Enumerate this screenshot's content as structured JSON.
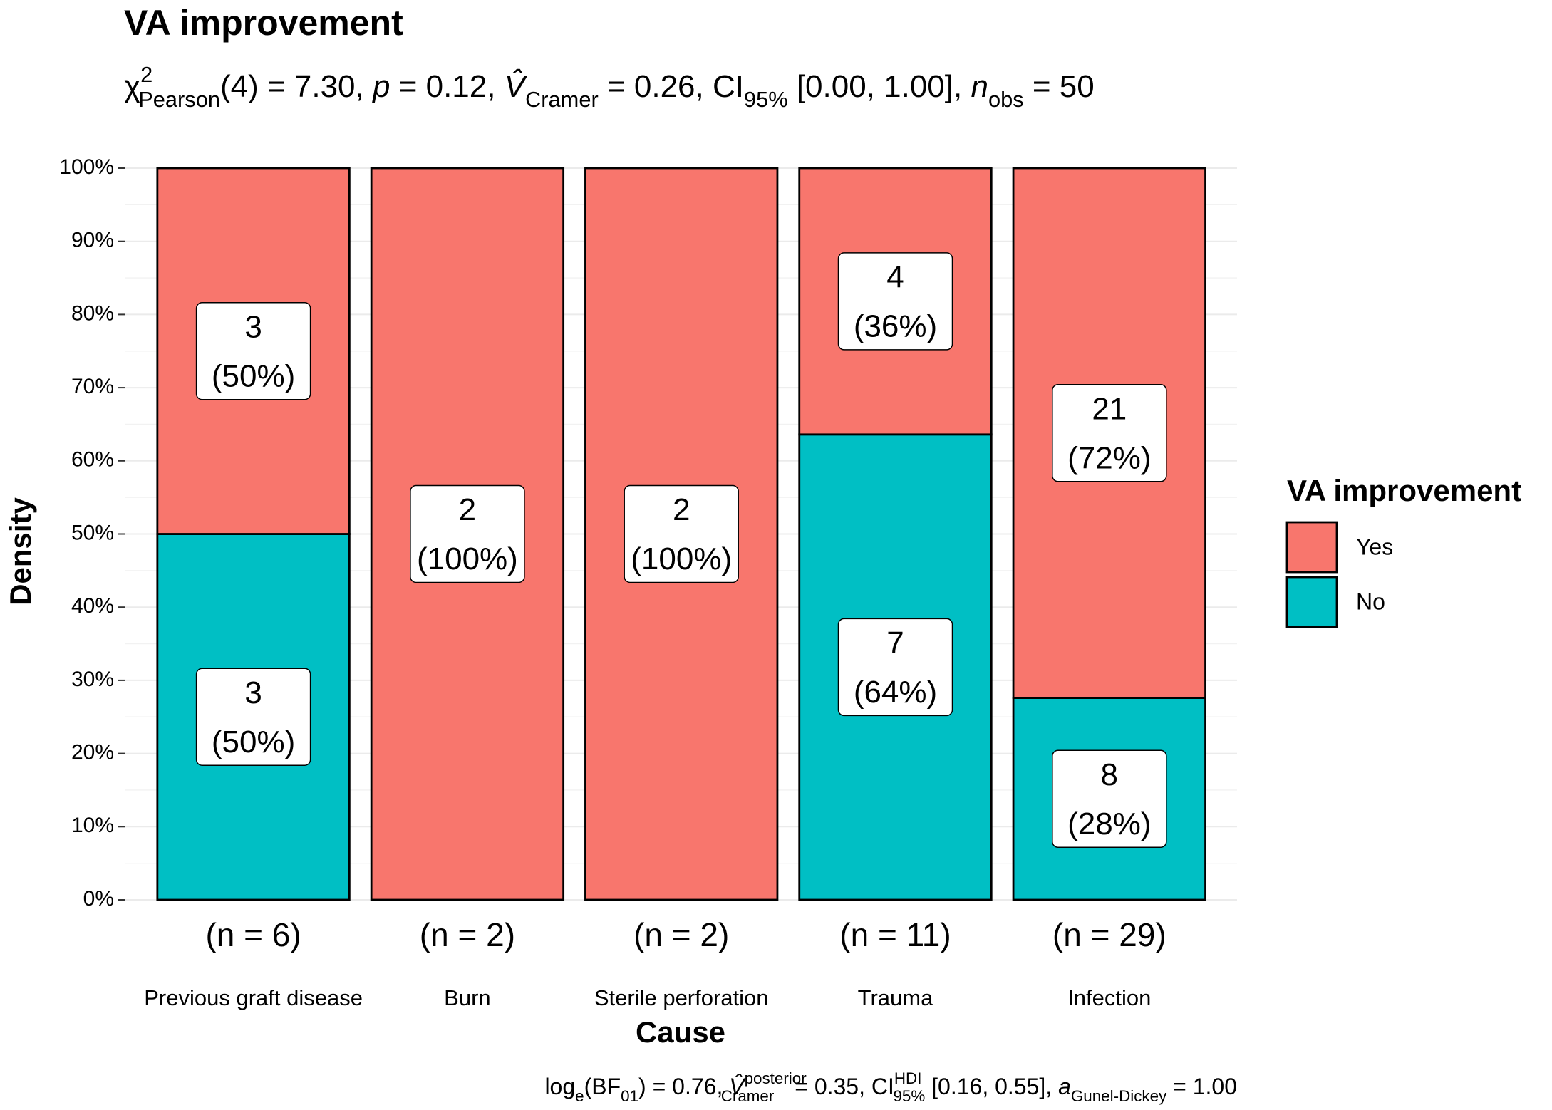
{
  "chart_data": {
    "type": "bar",
    "stacked": true,
    "title": "VA improvement",
    "subtitle": [
      "χ",
      "2",
      "Pearson",
      "(4) = 7.30, ",
      "p",
      " = 0.12, ",
      "V̂",
      "Cramer",
      " = 0.26, CI",
      "95%",
      " [0.00, 1.00], ",
      "n",
      "obs",
      " = 50"
    ],
    "caption": [
      "log",
      "e",
      "(BF",
      "01",
      ") = 0.76, ",
      "V̂",
      "posterior",
      "Cramer",
      " = 0.35, CI",
      "HDI",
      "95%",
      " [0.16, 0.55], ",
      "a",
      "Gunel-Dickey",
      " = 1.00"
    ],
    "xlabel": "Cause",
    "ylabel": "Density",
    "categories": [
      "Previous graft disease",
      "Burn",
      "Sterile perforation",
      "Trauma",
      "Infection"
    ],
    "n_labels": [
      "(n = 6)",
      "(n = 2)",
      "(n = 2)",
      "(n = 11)",
      "(n = 29)"
    ],
    "series": [
      {
        "name": "No",
        "color": "#00BFC4",
        "values": [
          50,
          0,
          0,
          63.6,
          27.6
        ],
        "counts": [
          3,
          null,
          null,
          7,
          8
        ],
        "value_labels": [
          "(50%)",
          null,
          null,
          "(64%)",
          "(28%)"
        ]
      },
      {
        "name": "Yes",
        "color": "#F8766D",
        "values": [
          50,
          100,
          100,
          36.4,
          72.4
        ],
        "counts": [
          3,
          2,
          2,
          4,
          21
        ],
        "value_labels": [
          "(50%)",
          "(100%)",
          "(100%)",
          "(36%)",
          "(72%)"
        ]
      }
    ],
    "legend_title": "VA improvement",
    "legend_position": "right",
    "ylim": [
      0,
      100
    ],
    "yticks": [
      {
        "value": 0,
        "label": "0%"
      },
      {
        "value": 10,
        "label": "10%"
      },
      {
        "value": 20,
        "label": "20%"
      },
      {
        "value": 30,
        "label": "30%"
      },
      {
        "value": 40,
        "label": "40%"
      },
      {
        "value": 50,
        "label": "50%"
      },
      {
        "value": 60,
        "label": "60%"
      },
      {
        "value": 70,
        "label": "70%"
      },
      {
        "value": 80,
        "label": "80%"
      },
      {
        "value": 90,
        "label": "90%"
      },
      {
        "value": 100,
        "label": "100%"
      }
    ],
    "grid": true
  }
}
